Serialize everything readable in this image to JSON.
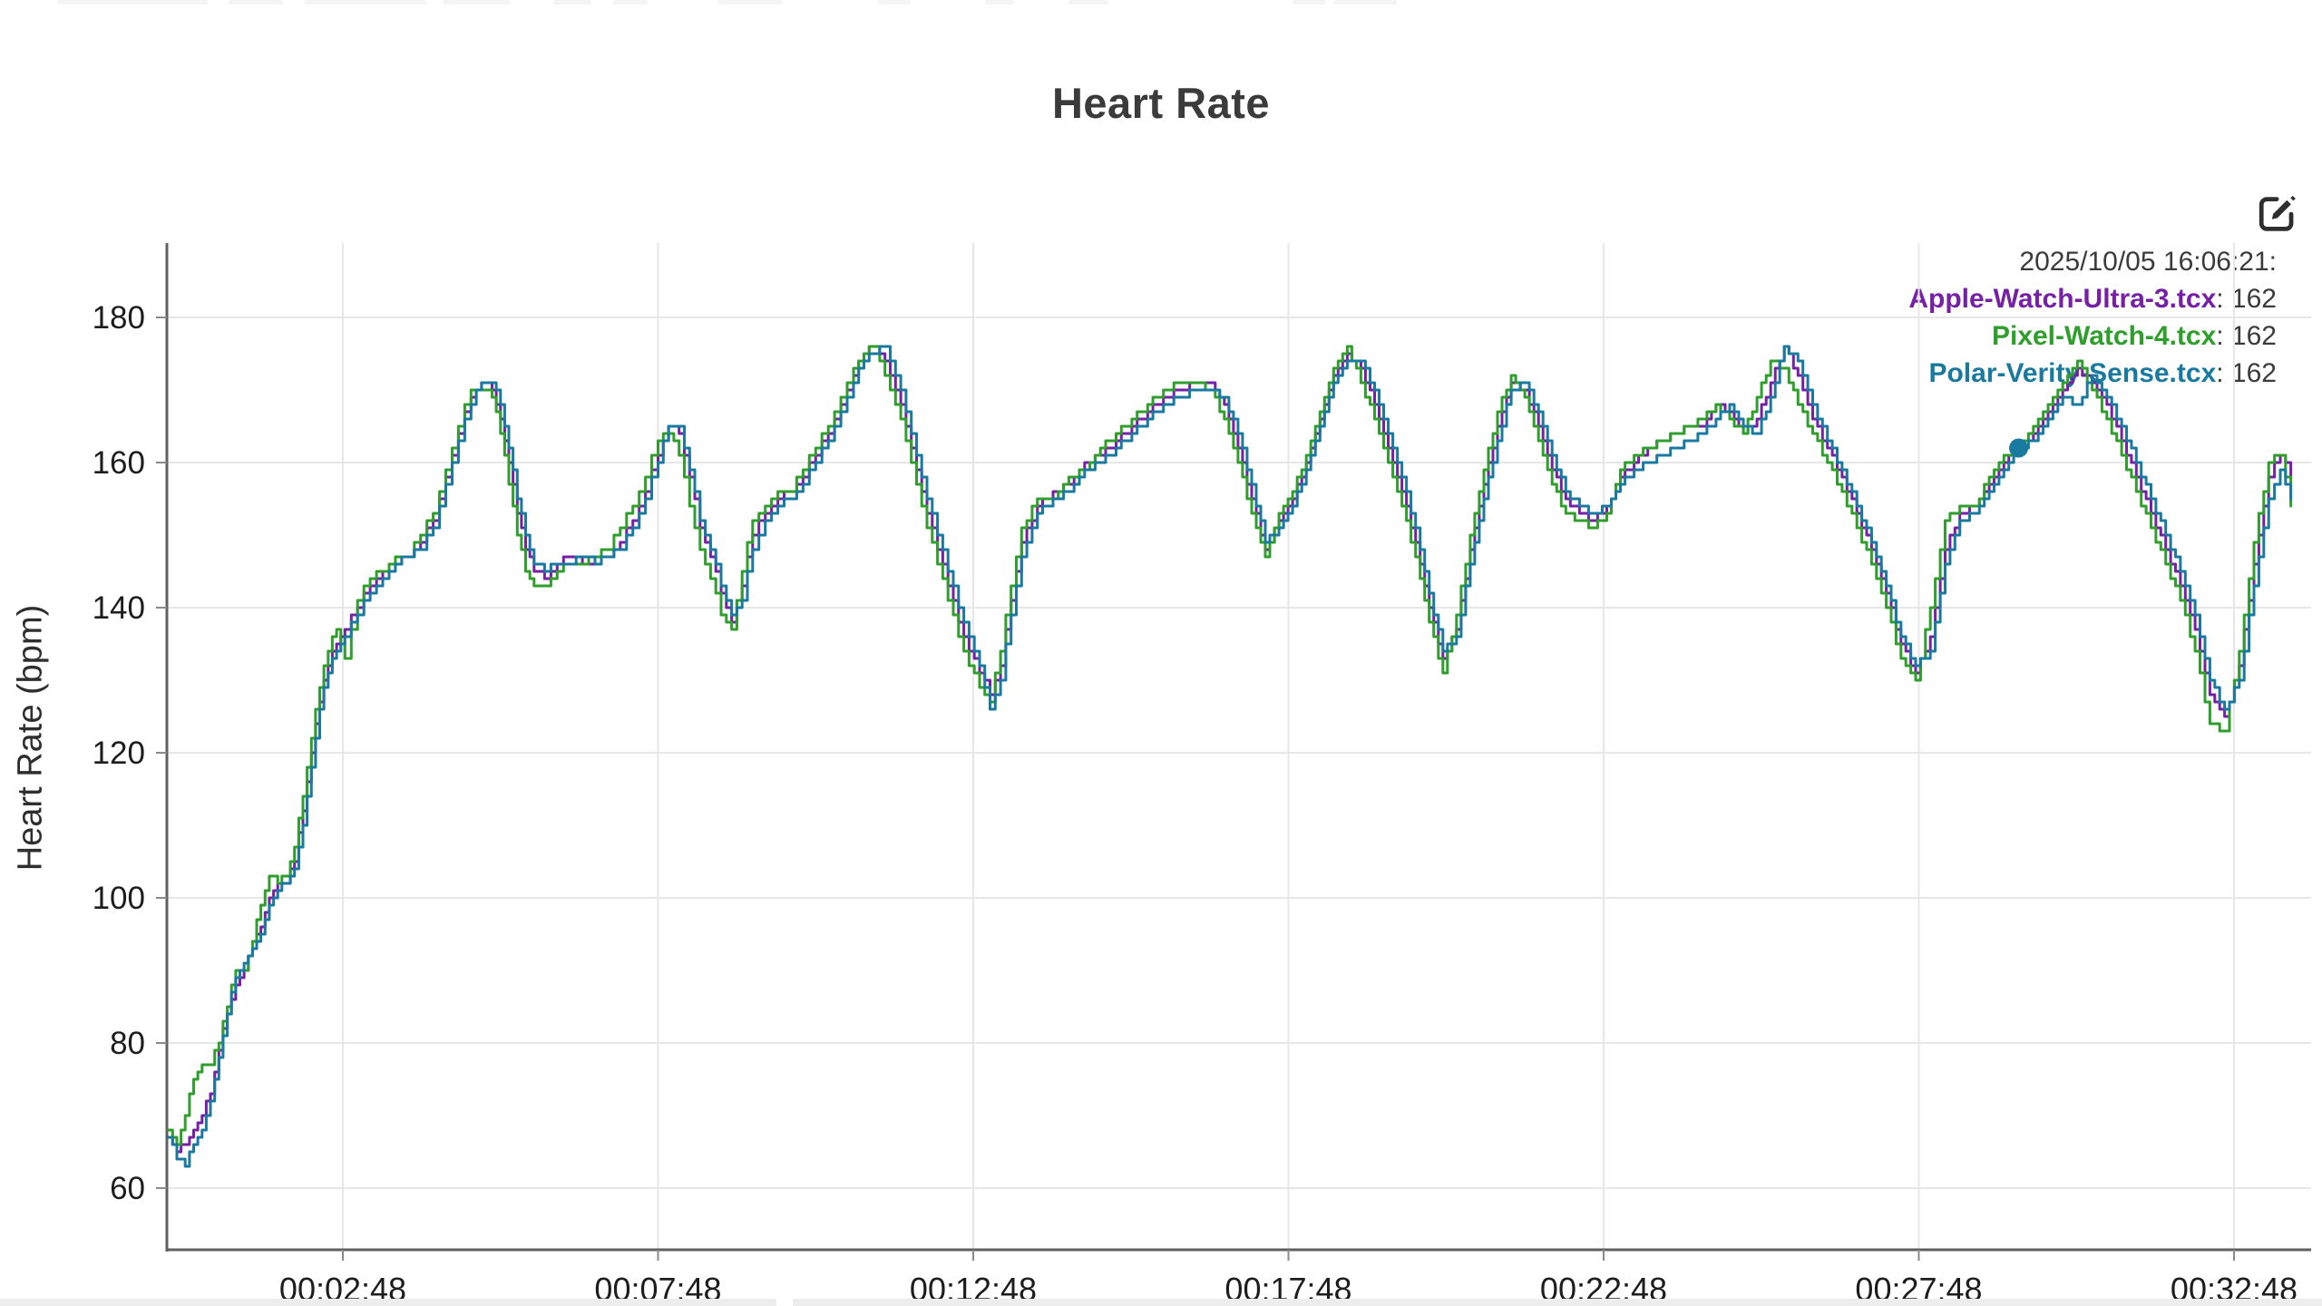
{
  "header": {
    "title": "Heart Rate"
  },
  "toolbar": {
    "edit_icon": "pencil-square-icon"
  },
  "legend": {
    "timestamp": "2025/10/05 16:06:21:"
  },
  "colors": {
    "title": "#3b3b3b",
    "tick_label": "#1d1d1d",
    "axis": "#606060",
    "grid": "#e7e7e7",
    "timestamp": "#3b3b3b",
    "apple": "#7620A6",
    "pixel": "#2F9E2C",
    "polar": "#1A799F",
    "background": "#ffffff"
  },
  "chart_data": {
    "type": "line",
    "title": "Heart Rate",
    "xlabel": "",
    "ylabel": "Heart Rate (bpm)",
    "x_unit": "elapsed time (seconds)",
    "ylim": [
      52,
      190
    ],
    "t_domain": [
      0,
      2041
    ],
    "grid": true,
    "legend_position": "top-right",
    "interpolation": "step-after",
    "y_ticks": [
      {
        "value": 60,
        "label": "60"
      },
      {
        "value": 80,
        "label": "80"
      },
      {
        "value": 100,
        "label": "100"
      },
      {
        "value": 120,
        "label": "120"
      },
      {
        "value": 140,
        "label": "140"
      },
      {
        "value": 160,
        "label": "160"
      },
      {
        "value": 180,
        "label": "180"
      }
    ],
    "x_ticks": [
      {
        "t": 168,
        "label": "00:02:48"
      },
      {
        "t": 468,
        "label": "00:07:48"
      },
      {
        "t": 768,
        "label": "00:12:48"
      },
      {
        "t": 1068,
        "label": "00:17:48"
      },
      {
        "t": 1368,
        "label": "00:22:48"
      },
      {
        "t": 1668,
        "label": "00:27:48"
      },
      {
        "t": 1968,
        "label": "00:32:48"
      }
    ],
    "cursor_point": {
      "t": 1763,
      "value": 162,
      "series": "Polar-Verity-Sense.tcx"
    },
    "x_seconds": [
      2,
      10,
      18,
      26,
      34,
      42,
      50,
      58,
      66,
      74,
      82,
      90,
      98,
      106,
      114,
      122,
      130,
      138,
      146,
      154,
      162,
      170,
      182,
      194,
      206,
      218,
      230,
      242,
      254,
      266,
      278,
      290,
      300,
      310,
      318,
      326,
      334,
      342,
      350,
      360,
      372,
      384,
      396,
      408,
      420,
      432,
      444,
      456,
      468,
      478,
      488,
      498,
      508,
      518,
      528,
      538,
      548,
      558,
      570,
      582,
      594,
      606,
      618,
      630,
      642,
      654,
      664,
      674,
      684,
      694,
      704,
      714,
      724,
      734,
      744,
      754,
      764,
      774,
      784,
      794,
      804,
      814,
      829,
      844,
      859,
      874,
      889,
      904,
      919,
      934,
      949,
      964,
      979,
      994,
      1007,
      1020,
      1033,
      1046,
      1059,
      1072,
      1085,
      1098,
      1111,
      1124,
      1137,
      1150,
      1163,
      1176,
      1189,
      1202,
      1215,
      1228,
      1241,
      1254,
      1267,
      1280,
      1293,
      1306,
      1319,
      1332,
      1345,
      1358,
      1371,
      1384,
      1397,
      1410,
      1423,
      1436,
      1449,
      1462,
      1475,
      1488,
      1501,
      1514,
      1527,
      1540,
      1553,
      1567,
      1581,
      1595,
      1609,
      1623,
      1637,
      1651,
      1665,
      1679,
      1693,
      1707,
      1721,
      1735,
      1749,
      1763,
      1777,
      1791,
      1805,
      1819,
      1833,
      1847,
      1861,
      1875,
      1889,
      1903,
      1917,
      1931,
      1945,
      1959,
      1973,
      1987,
      2001,
      2012,
      2022
    ],
    "series": [
      {
        "name": "Apple-Watch-Ultra-3.tcx",
        "color": "#7620A6",
        "legend_value": "162",
        "values": [
          67,
          65,
          66,
          68,
          70,
          73,
          79,
          84,
          88,
          90,
          93,
          96,
          100,
          102,
          102,
          105,
          112,
          120,
          127,
          132,
          135,
          137,
          140,
          143,
          145,
          146,
          147,
          149,
          152,
          158,
          164,
          169,
          171,
          170,
          166,
          160,
          153,
          148,
          145,
          144,
          146,
          147,
          146,
          146,
          147,
          149,
          152,
          156,
          161,
          165,
          164,
          158,
          151,
          147,
          142,
          138,
          143,
          150,
          153,
          155,
          156,
          158,
          161,
          164,
          168,
          172,
          175,
          176,
          174,
          170,
          165,
          159,
          153,
          148,
          143,
          138,
          134,
          131,
          128,
          132,
          141,
          149,
          154,
          156,
          157,
          160,
          161,
          163,
          165,
          167,
          169,
          170,
          171,
          171,
          168,
          162,
          155,
          148,
          152,
          155,
          160,
          166,
          172,
          175,
          173,
          168,
          162,
          156,
          149,
          140,
          133,
          137,
          148,
          157,
          165,
          171,
          170,
          165,
          159,
          155,
          153,
          152,
          154,
          158,
          160,
          162,
          163,
          164,
          165,
          165,
          168,
          167,
          164,
          166,
          171,
          176,
          172,
          166,
          162,
          158,
          153,
          148,
          142,
          135,
          131,
          136,
          148,
          153,
          154,
          157,
          160,
          162,
          164,
          167,
          170,
          173,
          171,
          168,
          163,
          158,
          153,
          148,
          143,
          137,
          128,
          125,
          132,
          146,
          158,
          161,
          158
        ]
      },
      {
        "name": "Pixel-Watch-4.tcx",
        "color": "#2F9E2C",
        "legend_value": "162",
        "values": [
          68,
          66,
          70,
          75,
          77,
          77,
          80,
          85,
          90,
          90,
          94,
          99,
          103,
          102,
          103,
          107,
          114,
          122,
          129,
          134,
          137,
          133,
          141,
          144,
          145,
          147,
          147,
          150,
          153,
          159,
          165,
          170,
          170,
          169,
          164,
          157,
          150,
          145,
          143,
          143,
          145,
          146,
          146,
          147,
          148,
          151,
          154,
          158,
          163,
          164,
          161,
          154,
          148,
          144,
          139,
          137,
          145,
          152,
          154,
          156,
          156,
          159,
          162,
          165,
          169,
          173,
          175,
          176,
          172,
          168,
          163,
          157,
          151,
          146,
          141,
          136,
          132,
          129,
          127,
          134,
          143,
          151,
          155,
          155,
          158,
          159,
          162,
          164,
          166,
          168,
          170,
          171,
          171,
          170,
          166,
          160,
          153,
          147,
          153,
          156,
          161,
          167,
          173,
          176,
          171,
          166,
          160,
          154,
          147,
          138,
          131,
          139,
          150,
          159,
          167,
          172,
          169,
          163,
          157,
          153,
          152,
          151,
          153,
          159,
          161,
          162,
          163,
          164,
          165,
          166,
          168,
          166,
          164,
          169,
          174,
          173,
          168,
          164,
          160,
          156,
          151,
          146,
          140,
          133,
          130,
          140,
          152,
          154,
          154,
          158,
          161,
          162,
          165,
          168,
          171,
          174,
          170,
          166,
          161,
          156,
          151,
          146,
          141,
          134,
          124,
          123,
          134,
          149,
          160,
          161,
          154
        ]
      },
      {
        "name": "Polar-Verity-Sense.tcx",
        "color": "#1A799F",
        "legend_value": "162",
        "values": [
          67,
          64,
          63,
          66,
          68,
          72,
          78,
          84,
          89,
          91,
          93,
          95,
          99,
          101,
          102,
          104,
          110,
          118,
          126,
          131,
          134,
          136,
          139,
          142,
          144,
          146,
          147,
          148,
          151,
          157,
          163,
          168,
          171,
          171,
          168,
          162,
          155,
          150,
          146,
          145,
          146,
          146,
          147,
          146,
          147,
          148,
          151,
          155,
          160,
          165,
          165,
          159,
          152,
          148,
          143,
          139,
          141,
          148,
          152,
          154,
          155,
          157,
          160,
          163,
          167,
          171,
          174,
          175,
          176,
          172,
          167,
          161,
          155,
          150,
          145,
          140,
          136,
          132,
          126,
          130,
          139,
          147,
          153,
          155,
          156,
          159,
          160,
          162,
          164,
          166,
          168,
          169,
          170,
          170,
          169,
          164,
          157,
          149,
          151,
          154,
          159,
          165,
          171,
          174,
          174,
          170,
          164,
          158,
          151,
          142,
          134,
          136,
          146,
          155,
          163,
          170,
          171,
          167,
          161,
          156,
          154,
          153,
          154,
          157,
          159,
          160,
          161,
          162,
          163,
          164,
          166,
          168,
          165,
          164,
          169,
          176,
          174,
          168,
          163,
          159,
          154,
          149,
          143,
          136,
          132,
          134,
          146,
          152,
          153,
          156,
          159,
          162,
          163,
          166,
          169,
          168,
          172,
          169,
          165,
          160,
          155,
          150,
          145,
          139,
          130,
          126,
          130,
          143,
          155,
          159,
          155
        ]
      }
    ]
  }
}
